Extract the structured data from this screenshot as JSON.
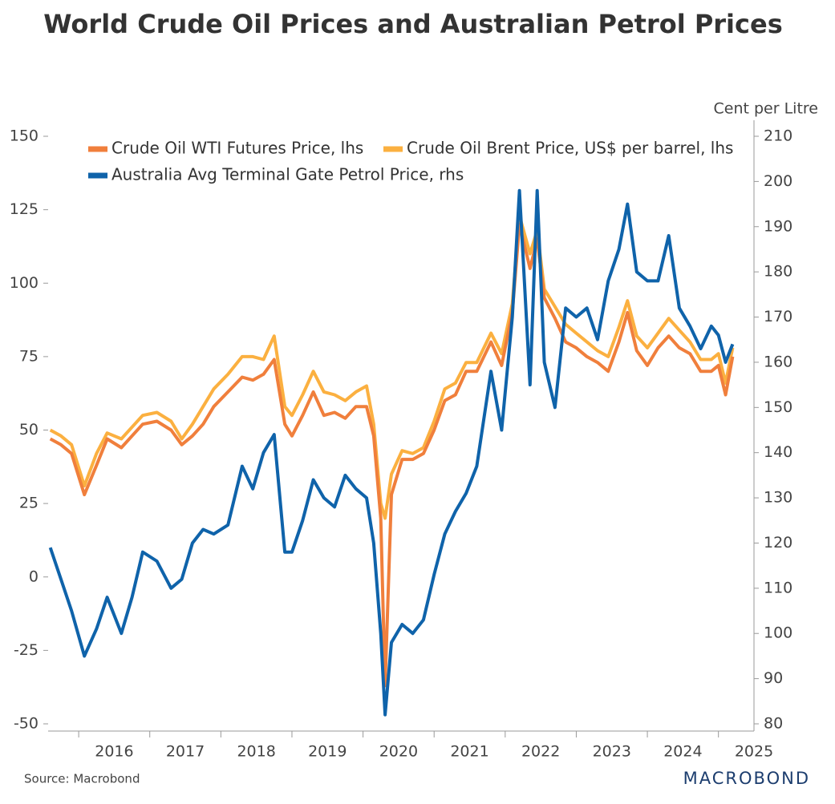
{
  "chart_data": {
    "type": "line",
    "title": "World Crude Oil Prices and Australian Petrol Prices",
    "y2_label": "Cent per Litre",
    "source": "Source: Macrobond",
    "logo": "MACROBOND",
    "x": [
      2015.6,
      2015.75,
      2015.9,
      2016.08,
      2016.25,
      2016.4,
      2016.6,
      2016.75,
      2016.9,
      2017.1,
      2017.3,
      2017.45,
      2017.6,
      2017.75,
      2017.9,
      2018.1,
      2018.3,
      2018.45,
      2018.6,
      2018.75,
      2018.9,
      2019.0,
      2019.15,
      2019.3,
      2019.45,
      2019.6,
      2019.75,
      2019.9,
      2020.05,
      2020.15,
      2020.25,
      2020.31,
      2020.4,
      2020.55,
      2020.7,
      2020.85,
      2021.0,
      2021.15,
      2021.3,
      2021.45,
      2021.6,
      2021.8,
      2021.95,
      2022.1,
      2022.2,
      2022.35,
      2022.45,
      2022.55,
      2022.7,
      2022.85,
      2023.0,
      2023.15,
      2023.3,
      2023.45,
      2023.6,
      2023.72,
      2023.85,
      2024.0,
      2024.15,
      2024.3,
      2024.45,
      2024.6,
      2024.75,
      2024.9,
      2025.0,
      2025.1,
      2025.2
    ],
    "xlim": [
      2015.57,
      2025.5
    ],
    "xticks": [
      2016,
      2017,
      2018,
      2019,
      2020,
      2021,
      2022,
      2023,
      2024,
      2025
    ],
    "ylim": [
      -50,
      150
    ],
    "yticks": [
      -50,
      -25,
      0,
      25,
      50,
      75,
      100,
      125,
      150
    ],
    "y2lim": [
      80,
      210
    ],
    "y2ticks": [
      80,
      90,
      100,
      110,
      120,
      130,
      140,
      150,
      160,
      170,
      180,
      190,
      200,
      210
    ],
    "series": [
      {
        "name": "Crude Oil Brent Price, US$ per barrel, lhs",
        "color": "#fbb040",
        "values": [
          50,
          48,
          45,
          31,
          42,
          49,
          47,
          51,
          55,
          56,
          53,
          47,
          52,
          58,
          64,
          69,
          75,
          75,
          74,
          82,
          58,
          55,
          62,
          70,
          63,
          62,
          60,
          63,
          65,
          52,
          25,
          20,
          35,
          43,
          42,
          44,
          53,
          64,
          66,
          73,
          73,
          83,
          76,
          93,
          123,
          110,
          118,
          98,
          92,
          86,
          83,
          80,
          77,
          75,
          85,
          94,
          82,
          78,
          83,
          88,
          84,
          80,
          74,
          74,
          76,
          66,
          78
        ]
      },
      {
        "name": "Crude Oil WTI Futures Price, lhs",
        "color": "#f07f3c",
        "values": [
          47,
          45,
          42,
          28,
          38,
          47,
          44,
          48,
          52,
          53,
          50,
          45,
          48,
          52,
          58,
          63,
          68,
          67,
          69,
          74,
          52,
          48,
          55,
          63,
          55,
          56,
          54,
          58,
          58,
          48,
          20,
          -37,
          28,
          40,
          40,
          42,
          50,
          60,
          62,
          70,
          70,
          80,
          72,
          90,
          120,
          105,
          115,
          95,
          88,
          80,
          78,
          75,
          73,
          70,
          80,
          90,
          77,
          72,
          78,
          82,
          78,
          76,
          70,
          70,
          72,
          62,
          75
        ]
      },
      {
        "name": "Australia Avg Terminal Gate Petrol Price, rhs",
        "color": "#0f63aa",
        "axis": "y2",
        "values": [
          119,
          112,
          105,
          95,
          101,
          108,
          100,
          108,
          118,
          116,
          110,
          112,
          120,
          123,
          122,
          124,
          137,
          132,
          140,
          144,
          118,
          118,
          125,
          134,
          130,
          128,
          135,
          132,
          130,
          120,
          100,
          82,
          98,
          102,
          100,
          103,
          113,
          122,
          127,
          131,
          137,
          158,
          145,
          170,
          198,
          155,
          198,
          160,
          150,
          172,
          170,
          172,
          165,
          178,
          185,
          195,
          180,
          178,
          178,
          188,
          172,
          168,
          163,
          168,
          166,
          160,
          164
        ]
      }
    ]
  }
}
